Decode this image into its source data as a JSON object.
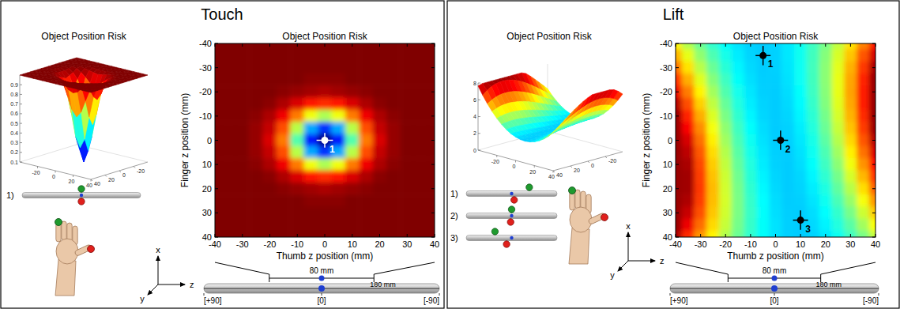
{
  "chart_data": [
    {
      "type": "heatmap",
      "panel_title": "Touch",
      "title": "Object Position Risk",
      "surface_title": "Object Position Risk",
      "x_label": "Thumb z position (mm)",
      "y_label": "Finger z position (mm)",
      "xlim": [
        -40,
        40
      ],
      "ylim": [
        40,
        -40
      ],
      "xticks": [
        -40,
        -30,
        -20,
        -10,
        0,
        10,
        20,
        30,
        40
      ],
      "yticks": [
        -40,
        -30,
        -20,
        -10,
        0,
        10,
        20,
        30,
        40
      ],
      "color": "jet",
      "zlim": [
        0.1,
        1
      ],
      "zticks": [
        0.1,
        0.2,
        0.3,
        0.4,
        0.5,
        0.6,
        0.7,
        0.8,
        0.9
      ],
      "surface_ticks": [
        -20,
        0,
        20,
        40
      ],
      "cell_x": [
        -40,
        -35,
        -30,
        -25,
        -20,
        -15,
        -10,
        -5,
        0,
        5,
        10,
        15,
        20,
        25,
        30,
        35,
        40
      ],
      "cell_y": [
        -40,
        -35,
        -30,
        -25,
        -20,
        -15,
        -10,
        -5,
        0,
        5,
        10,
        15,
        20,
        25,
        30,
        35,
        40
      ],
      "cells": [
        [
          1,
          1,
          1,
          1,
          1,
          1,
          1,
          1,
          1,
          1,
          1,
          1,
          1,
          1,
          1,
          1,
          1
        ],
        [
          1,
          1,
          1,
          1,
          1,
          1,
          1,
          1,
          1,
          1,
          1,
          1,
          1,
          1,
          1,
          1,
          1
        ],
        [
          1,
          1,
          1,
          1,
          1,
          1,
          1,
          1,
          1,
          1,
          1,
          1,
          1,
          1,
          1,
          1,
          1
        ],
        [
          1,
          1,
          1,
          1,
          1,
          1,
          1,
          0.99,
          0.99,
          0.99,
          1,
          1,
          1,
          1,
          1,
          1,
          1
        ],
        [
          1,
          1,
          1,
          1,
          1,
          0.99,
          0.98,
          0.97,
          0.96,
          0.97,
          0.98,
          0.99,
          1,
          1,
          1,
          1,
          1
        ],
        [
          1,
          1,
          1,
          1,
          0.99,
          0.96,
          0.92,
          0.87,
          0.85,
          0.87,
          0.92,
          0.96,
          0.99,
          1,
          1,
          1,
          1
        ],
        [
          1,
          1,
          1,
          0.99,
          0.96,
          0.9,
          0.78,
          0.65,
          0.59,
          0.65,
          0.78,
          0.9,
          0.96,
          0.99,
          1,
          1,
          1
        ],
        [
          1,
          1,
          1,
          0.98,
          0.94,
          0.82,
          0.6,
          0.36,
          0.26,
          0.36,
          0.6,
          0.82,
          0.94,
          0.98,
          1,
          1,
          1
        ],
        [
          1,
          1,
          1,
          0.98,
          0.92,
          0.78,
          0.51,
          0.23,
          0.1,
          0.23,
          0.51,
          0.78,
          0.92,
          0.98,
          1,
          1,
          1
        ],
        [
          1,
          1,
          1,
          0.98,
          0.94,
          0.82,
          0.6,
          0.36,
          0.26,
          0.36,
          0.6,
          0.82,
          0.94,
          0.98,
          1,
          1,
          1
        ],
        [
          1,
          1,
          1,
          0.99,
          0.96,
          0.9,
          0.78,
          0.65,
          0.59,
          0.65,
          0.78,
          0.9,
          0.96,
          0.99,
          1,
          1,
          1
        ],
        [
          1,
          1,
          1,
          1,
          0.99,
          0.96,
          0.92,
          0.87,
          0.85,
          0.87,
          0.92,
          0.96,
          0.99,
          1,
          1,
          1,
          1
        ],
        [
          1,
          1,
          1,
          1,
          1,
          0.99,
          0.98,
          0.97,
          0.96,
          0.97,
          0.98,
          0.99,
          1,
          1,
          1,
          1,
          1
        ],
        [
          1,
          1,
          1,
          1,
          1,
          1,
          1,
          0.99,
          0.99,
          0.99,
          1,
          1,
          1,
          1,
          1,
          1,
          1
        ],
        [
          1,
          1,
          1,
          1,
          1,
          1,
          1,
          1,
          1,
          1,
          1,
          1,
          1,
          1,
          1,
          1,
          1
        ],
        [
          1,
          1,
          1,
          1,
          1,
          1,
          1,
          1,
          1,
          1,
          1,
          1,
          1,
          1,
          1,
          1,
          1
        ],
        [
          1,
          1,
          1,
          1,
          1,
          1,
          1,
          1,
          1,
          1,
          1,
          1,
          1,
          1,
          1,
          1,
          1
        ]
      ],
      "points": {
        "x": [
          0
        ],
        "y": [
          0
        ],
        "x_err": [
          3
        ],
        "y_err": [
          3
        ],
        "labels": [
          "1"
        ],
        "color": "#ffffff"
      },
      "diagram_labels": [
        "1)"
      ],
      "axes_labels": [
        "x",
        "y",
        "z"
      ],
      "rod": {
        "lim": [
          90,
          -90
        ],
        "ticks": [
          {
            "value": 90,
            "label": "[+90]"
          },
          {
            "value": 0,
            "label": "[0]"
          },
          {
            "value": -90,
            "label": "[-90]"
          }
        ],
        "window_label": "80 mm",
        "length_label": "180 mm"
      }
    },
    {
      "type": "heatmap",
      "panel_title": "Lift",
      "title": "Object Position Risk",
      "surface_title": "Object Position Risk",
      "x_label": "Thumb z position (mm)",
      "y_label": "Finger z position (mm)",
      "xlim": [
        -40,
        40
      ],
      "ylim": [
        40,
        -40
      ],
      "xticks": [
        -40,
        -30,
        -20,
        -10,
        0,
        10,
        20,
        30,
        40
      ],
      "yticks": [
        -40,
        -30,
        -20,
        -10,
        0,
        10,
        20,
        30,
        40
      ],
      "color": "jet",
      "zlim": [
        0,
        8
      ],
      "zticks": [
        0,
        2,
        4,
        6,
        8
      ],
      "surface_ticks": [
        -20,
        0,
        20,
        40
      ],
      "cell_x": [
        -40,
        -35,
        -30,
        -25,
        -20,
        -15,
        -10,
        -5,
        0,
        5,
        10,
        15,
        20,
        25,
        30,
        35,
        40
      ],
      "cell_y": [
        -40,
        -35,
        -30,
        -25,
        -20,
        -15,
        -10,
        -5,
        0,
        5,
        10,
        15,
        20,
        25,
        30,
        35,
        40
      ],
      "cells": [
        [
          5.06,
          4.39,
          3.84,
          3.38,
          3.03,
          2.79,
          2.64,
          2.6,
          2.66,
          2.83,
          3.1,
          3.47,
          3.94,
          4.52,
          5.2,
          5.98,
          6.87
        ],
        [
          5.6,
          4.81,
          4.14,
          3.6,
          3.17,
          2.86,
          2.67,
          2.6,
          2.65,
          2.82,
          3.11,
          3.51,
          4.04,
          4.69,
          5.45,
          6.33,
          7.34
        ],
        [
          6.12,
          5.22,
          4.45,
          3.82,
          3.31,
          2.94,
          2.71,
          2.61,
          2.64,
          2.8,
          3.09,
          3.52,
          4.09,
          4.78,
          5.61,
          6.57,
          7.67
        ],
        [
          6.64,
          5.63,
          4.76,
          4.04,
          3.47,
          3.04,
          2.76,
          2.62,
          2.62,
          2.77,
          3.07,
          3.51,
          4.09,
          4.82,
          5.7,
          6.72,
          7.8
        ],
        [
          7.13,
          6.02,
          5.07,
          4.27,
          3.63,
          3.14,
          2.81,
          2.63,
          2.61,
          2.74,
          3.03,
          3.47,
          4.06,
          4.81,
          5.72,
          6.78,
          7.8
        ],
        [
          7.58,
          6.39,
          5.36,
          4.5,
          3.8,
          3.25,
          2.87,
          2.66,
          2.6,
          2.71,
          2.98,
          3.41,
          4.01,
          4.76,
          5.68,
          6.76,
          7.8
        ],
        [
          7.8,
          6.74,
          5.64,
          4.72,
          3.96,
          3.37,
          2.94,
          2.69,
          2.6,
          2.68,
          2.93,
          3.34,
          3.92,
          4.67,
          5.59,
          6.68,
          7.8
        ],
        [
          7.8,
          7.04,
          5.9,
          4.92,
          4.12,
          3.48,
          3.02,
          2.73,
          2.6,
          2.65,
          2.87,
          3.26,
          3.83,
          4.56,
          5.46,
          6.54,
          7.78
        ],
        [
          7.8,
          7.31,
          6.12,
          5.11,
          4.26,
          3.59,
          3.1,
          2.77,
          2.61,
          2.63,
          2.82,
          3.18,
          3.71,
          4.42,
          5.3,
          6.34,
          7.56
        ],
        [
          7.8,
          7.52,
          6.31,
          5.27,
          4.4,
          3.7,
          3.17,
          2.82,
          2.63,
          2.61,
          2.77,
          3.1,
          3.59,
          4.26,
          5.1,
          6.11,
          7.29
        ],
        [
          7.8,
          7.67,
          6.45,
          5.39,
          4.51,
          3.79,
          3.25,
          2.86,
          2.65,
          2.6,
          2.73,
          3.02,
          3.47,
          4.1,
          4.89,
          5.85,
          6.97
        ],
        [
          7.8,
          7.74,
          6.53,
          5.48,
          4.6,
          3.87,
          3.31,
          2.91,
          2.68,
          2.6,
          2.69,
          2.94,
          3.35,
          3.92,
          4.66,
          5.56,
          6.62
        ],
        [
          7.8,
          7.74,
          6.55,
          5.53,
          4.65,
          3.93,
          3.37,
          2.96,
          2.7,
          2.6,
          2.66,
          2.87,
          3.23,
          3.75,
          4.42,
          5.25,
          6.23
        ],
        [
          7.8,
          7.64,
          6.51,
          5.51,
          4.67,
          3.96,
          3.41,
          3,
          2.73,
          2.61,
          2.63,
          2.8,
          3.11,
          3.57,
          4.18,
          4.93,
          5.82
        ],
        [
          7.8,
          7.44,
          6.37,
          5.44,
          4.63,
          3.96,
          3.43,
          3.02,
          2.75,
          2.62,
          2.61,
          2.74,
          3.01,
          3.4,
          3.93,
          4.6,
          5.39
        ],
        [
          7.8,
          7.13,
          6.15,
          5.29,
          4.55,
          3.92,
          3.42,
          3.04,
          2.78,
          2.63,
          2.6,
          2.7,
          2.91,
          3.25,
          3.7,
          4.27,
          4.96
        ],
        [
          7.65,
          6.68,
          5.82,
          5.06,
          4.39,
          3.84,
          3.38,
          3.03,
          2.79,
          2.64,
          2.6,
          2.66,
          2.83,
          3.1,
          3.47,
          3.94,
          4.52
        ]
      ],
      "points": {
        "x": [
          -5,
          2,
          10
        ],
        "y": [
          -35,
          0,
          33
        ],
        "x_err": [
          3,
          3,
          3
        ],
        "y_err": [
          4,
          4,
          4
        ],
        "labels": [
          "1",
          "2",
          "3"
        ],
        "color": "#000000"
      },
      "diagram_labels": [
        "1)",
        "2)",
        "3)"
      ],
      "axes_labels": [
        "x",
        "y",
        "z"
      ],
      "rod": {
        "lim": [
          90,
          -90
        ],
        "ticks": [
          {
            "value": 90,
            "label": "[+90]"
          },
          {
            "value": 0,
            "label": "[0]"
          },
          {
            "value": -90,
            "label": "[-90]"
          }
        ],
        "window_label": "80 mm",
        "length_label": "180 mm"
      }
    }
  ]
}
